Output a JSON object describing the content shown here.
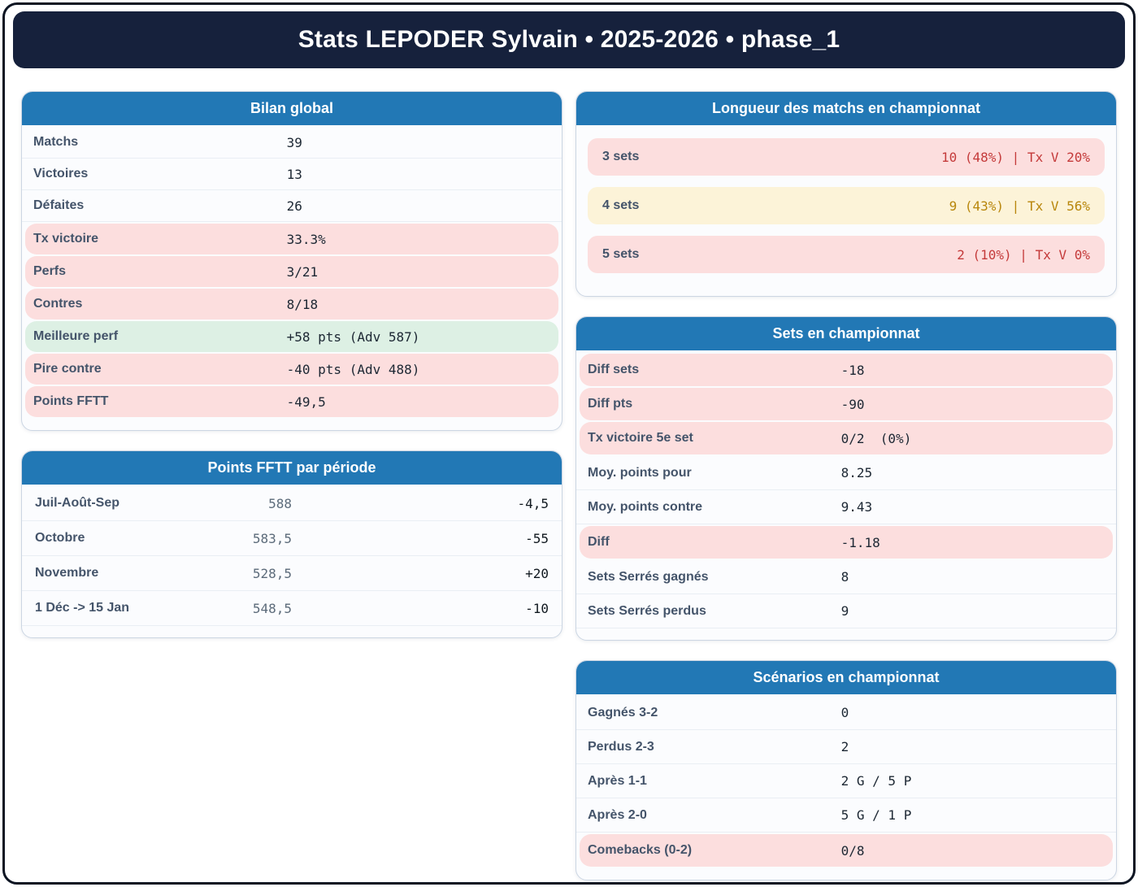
{
  "title": "Stats LEPODER Sylvain • 2025-2026 • phase_1",
  "colors": {
    "header_navy": "#16213c",
    "accent_blue": "#2278b5",
    "pink_bg": "#fcdede",
    "green_bg": "#ddf0e4",
    "cream_bg": "#fcf3d8",
    "red_text": "#c43a3a",
    "amber_text": "#b8860b",
    "label_slate": "#44546a"
  },
  "cards": {
    "bilan": {
      "header": "Bilan global",
      "rows": [
        {
          "label": "Matchs",
          "value": "39",
          "highlight": "none"
        },
        {
          "label": "Victoires",
          "value": "13",
          "highlight": "none"
        },
        {
          "label": "Défaites",
          "value": "26",
          "highlight": "none"
        },
        {
          "label": "Tx victoire",
          "value": "33.3%",
          "highlight": "pink"
        },
        {
          "label": "Perfs",
          "value": "3/21",
          "highlight": "pink"
        },
        {
          "label": "Contres",
          "value": "8/18",
          "highlight": "pink"
        },
        {
          "label": "Meilleure perf",
          "value": "+58 pts (Adv 587)",
          "highlight": "green"
        },
        {
          "label": "Pire contre",
          "value": "-40 pts (Adv 488)",
          "highlight": "pink"
        },
        {
          "label": "Points FFTT",
          "value": "-49,5",
          "highlight": "pink"
        }
      ]
    },
    "periode": {
      "header": "Points FFTT par période",
      "rows": [
        {
          "label": "Juil-Août-Sep",
          "points": "588",
          "delta": "-4,5"
        },
        {
          "label": "Octobre",
          "points": "583,5",
          "delta": "-55"
        },
        {
          "label": "Novembre",
          "points": "528,5",
          "delta": "+20"
        },
        {
          "label": "1 Déc -> 15 Jan",
          "points": "548,5",
          "delta": "-10"
        }
      ]
    },
    "longueur": {
      "header": "Longueur des matchs en championnat",
      "rows": [
        {
          "label": "3 sets",
          "value": "10 (48%) | Tx V 20%",
          "tone": "red"
        },
        {
          "label": "4 sets",
          "value": "9 (43%) | Tx V 56%",
          "tone": "amber"
        },
        {
          "label": "5 sets",
          "value": "2 (10%) | Tx V 0%",
          "tone": "red"
        }
      ]
    },
    "sets": {
      "header": "Sets en championnat",
      "rows": [
        {
          "label": "Diff sets",
          "value": "-18",
          "highlight": "pink"
        },
        {
          "label": "Diff pts",
          "value": "-90",
          "highlight": "pink"
        },
        {
          "label": "Tx victoire 5e set",
          "value": "0/2  (0%)",
          "highlight": "pink"
        },
        {
          "label": "Moy. points pour",
          "value": "8.25",
          "highlight": "none"
        },
        {
          "label": "Moy. points contre",
          "value": "9.43",
          "highlight": "none"
        },
        {
          "label": "Diff",
          "value": "-1.18",
          "highlight": "pink"
        },
        {
          "label": "Sets Serrés gagnés",
          "value": "8",
          "highlight": "none"
        },
        {
          "label": "Sets Serrés perdus",
          "value": "9",
          "highlight": "none"
        }
      ]
    },
    "scenarios": {
      "header": "Scénarios en championnat",
      "rows": [
        {
          "label": "Gagnés 3-2",
          "value": "0",
          "highlight": "none"
        },
        {
          "label": "Perdus 2-3",
          "value": "2",
          "highlight": "none"
        },
        {
          "label": "Après 1-1",
          "value": "2 G / 5 P",
          "highlight": "none"
        },
        {
          "label": "Après 2-0",
          "value": "5 G / 1 P",
          "highlight": "none"
        },
        {
          "label": "Comebacks (0-2)",
          "value": "0/8",
          "highlight": "pink"
        }
      ]
    }
  }
}
